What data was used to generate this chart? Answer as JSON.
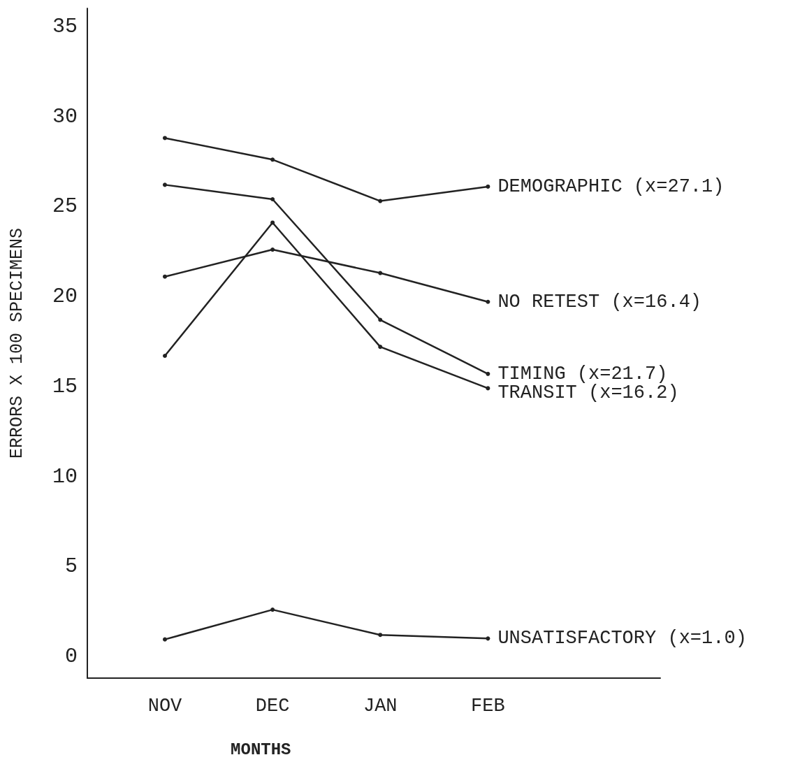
{
  "chart_data": {
    "type": "line",
    "xlabel": "MONTHS",
    "ylabel": "ERRORS X 100 SPECIMENS",
    "categories": [
      "NOV",
      "DEC",
      "JAN",
      "FEB"
    ],
    "ylim": [
      -1.2,
      36
    ],
    "yticks": [
      0,
      5,
      10,
      15,
      20,
      25,
      30,
      35
    ],
    "series": [
      {
        "name": "DEMOGRAPHIC (x=27.1)",
        "color": "#222222",
        "values": [
          28.8,
          27.6,
          25.3,
          26.1
        ]
      },
      {
        "name": "NO RETEST (x=16.4)",
        "color": "#222222",
        "values": [
          21.1,
          22.6,
          21.3,
          19.7
        ]
      },
      {
        "name": "TIMING (x=21.7)",
        "color": "#222222",
        "values": [
          26.2,
          25.4,
          18.7,
          15.7
        ]
      },
      {
        "name": "TRANSIT (x=16.2)",
        "color": "#222222",
        "values": [
          16.7,
          24.1,
          17.2,
          14.9
        ]
      },
      {
        "name": "UNSATISFACTORY (x=1.0)",
        "color": "#222222",
        "values": [
          0.95,
          2.6,
          1.2,
          1.0
        ]
      }
    ],
    "marker": "circle",
    "line_style": "solid",
    "grid": false,
    "legend": false
  }
}
